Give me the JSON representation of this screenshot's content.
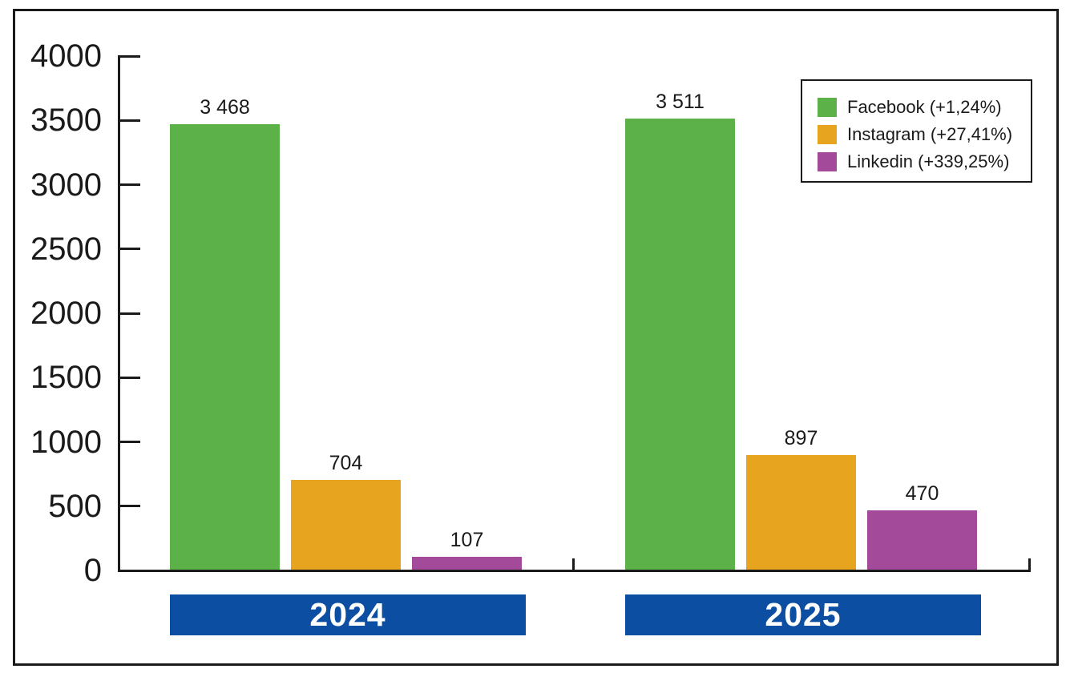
{
  "chart_data": {
    "type": "bar",
    "categories": [
      "2024",
      "2025"
    ],
    "series": [
      {
        "name": "Facebook",
        "legend_label": "Facebook (+1,24%)",
        "color": "#5CB248",
        "values": [
          3468,
          3511
        ],
        "value_labels": [
          "3 468",
          "3 511"
        ]
      },
      {
        "name": "Instagram",
        "legend_label": "Instagram (+27,41%)",
        "color": "#E7A51F",
        "values": [
          704,
          897
        ],
        "value_labels": [
          "704",
          "897"
        ]
      },
      {
        "name": "Linkedin",
        "legend_label": "Linkedin (+339,25%)",
        "color": "#A34A9B",
        "values": [
          107,
          470
        ],
        "value_labels": [
          "107",
          "470"
        ]
      }
    ],
    "title": "",
    "xlabel": "",
    "ylabel": "",
    "ylim": [
      0,
      4000
    ],
    "ytick_step": 500,
    "ytick_labels": [
      "0",
      "500",
      "1000",
      "1500",
      "2000",
      "2500",
      "3000",
      "3500",
      "4000"
    ],
    "grid": false,
    "legend_position": "top-right",
    "category_band_color": "#0B4EA2",
    "category_text_color": "#FFFFFF",
    "axis_color": "#1A1A1A"
  }
}
